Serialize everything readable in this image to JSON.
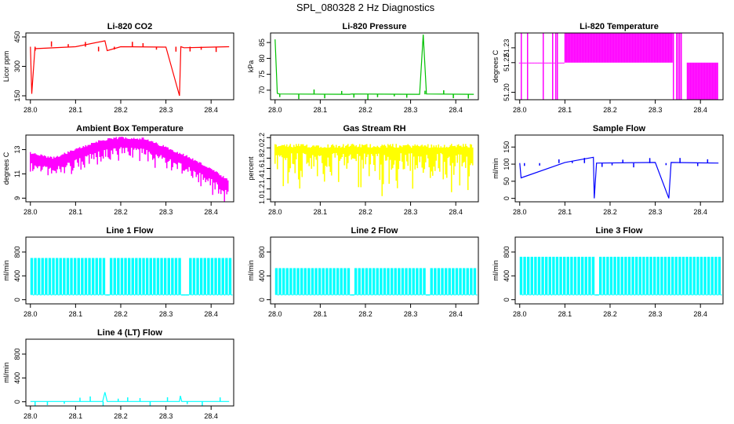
{
  "figure_title": "SPL_080328  2 Hz Diagnostics",
  "colors": {
    "red": "#ff0000",
    "green": "#00c000",
    "magenta": "#ff00ff",
    "yellow": "#ffff00",
    "blue": "#0000ff",
    "cyan": "#00ffff",
    "axis": "#000000"
  },
  "chart_data": [
    {
      "type": "line",
      "title": "Li-820 CO2",
      "xlabel": "",
      "ylabel": "Licor ppm",
      "xlim": [
        27.99,
        28.45
      ],
      "ylim": [
        130,
        470
      ],
      "xticks": [
        28.0,
        28.1,
        28.2,
        28.3,
        28.4
      ],
      "xtick_labels": [
        "28.0",
        "28.1",
        "28.2",
        "28.3",
        "28.4"
      ],
      "yticks": [
        150,
        300,
        450
      ],
      "ytick_labels": [
        "150",
        "300",
        "450"
      ],
      "color": "red",
      "style": "spiky",
      "series": [
        {
          "name": "CO2",
          "x": [
            28.0,
            28.003,
            28.01,
            28.1,
            28.165,
            28.17,
            28.2,
            28.3,
            28.33,
            28.333,
            28.34,
            28.44
          ],
          "y": [
            400,
            160,
            390,
            400,
            430,
            380,
            400,
            398,
            150,
            400,
            395,
            400
          ]
        }
      ]
    },
    {
      "type": "line",
      "title": "Li-820 Pressure",
      "xlabel": "",
      "ylabel": "kPa",
      "xlim": [
        27.99,
        28.45
      ],
      "ylim": [
        67,
        88
      ],
      "xticks": [
        28.0,
        28.1,
        28.2,
        28.3,
        28.4
      ],
      "xtick_labels": [
        "28.0",
        "28.1",
        "28.2",
        "28.3",
        "28.4"
      ],
      "yticks": [
        70,
        75,
        80,
        85
      ],
      "ytick_labels": [
        "70",
        "75",
        "80",
        "85"
      ],
      "color": "green",
      "style": "spiky",
      "series": [
        {
          "name": "Pressure",
          "x": [
            28.0,
            28.005,
            28.01,
            28.165,
            28.17,
            28.32,
            28.328,
            28.335,
            28.44
          ],
          "y": [
            86,
            69,
            68.8,
            68.7,
            68.8,
            68.7,
            87.5,
            68.8,
            68.7
          ]
        }
      ]
    },
    {
      "type": "line",
      "title": "Li-820 Temperature",
      "xlabel": "",
      "ylabel": "degrees C",
      "xlim": [
        27.99,
        28.45
      ],
      "ylim": [
        51.195,
        51.24
      ],
      "xticks": [
        28.0,
        28.1,
        28.2,
        28.3,
        28.4
      ],
      "xtick_labels": [
        "28.0",
        "28.1",
        "28.2",
        "28.3",
        "28.4"
      ],
      "yticks": [
        51.2,
        51.22,
        51.23
      ],
      "ytick_labels": [
        "51.20",
        "51.22",
        "51.23"
      ],
      "color": "magenta",
      "style": "dense",
      "series": [
        {
          "name": "Temperature",
          "x": [
            28.0,
            28.1,
            28.34,
            28.37,
            28.44
          ],
          "y": [
            51.23,
            51.23,
            51.22,
            51.22,
            51.22
          ]
        }
      ]
    },
    {
      "type": "line",
      "title": "Ambient Box Temperature",
      "xlabel": "",
      "ylabel": "degrees C",
      "xlim": [
        27.99,
        28.45
      ],
      "ylim": [
        8.7,
        14.2
      ],
      "xticks": [
        28.0,
        28.1,
        28.2,
        28.3,
        28.4
      ],
      "xtick_labels": [
        "28.0",
        "28.1",
        "28.2",
        "28.3",
        "28.4"
      ],
      "yticks": [
        9,
        11,
        13
      ],
      "ytick_labels": [
        "9",
        "11",
        "13"
      ],
      "color": "magenta",
      "style": "band",
      "series": [
        {
          "name": "Ambient",
          "x": [
            28.0,
            28.05,
            28.1,
            28.15,
            28.2,
            28.25,
            28.3,
            28.35,
            28.4,
            28.44
          ],
          "y": [
            12.3,
            11.9,
            12.6,
            13.3,
            13.6,
            13.5,
            12.8,
            12.0,
            11.0,
            10.0
          ]
        }
      ]
    },
    {
      "type": "line",
      "title": "Gas Stream RH",
      "xlabel": "",
      "ylabel": "percent",
      "xlim": [
        27.99,
        28.45
      ],
      "ylim": [
        0.95,
        2.25
      ],
      "xticks": [
        28.0,
        28.1,
        28.2,
        28.3,
        28.4
      ],
      "xtick_labels": [
        "28.0",
        "28.1",
        "28.2",
        "28.3",
        "28.4"
      ],
      "yticks": [
        1.0,
        1.2,
        1.4,
        1.6,
        1.8,
        2.0,
        2.2
      ],
      "ytick_labels": [
        "1.0",
        "1.2",
        "1.4",
        "1.6",
        "1.8",
        "2.0",
        "2.2"
      ],
      "color": "yellow",
      "style": "dense",
      "series": [
        {
          "name": "RH",
          "x": [
            28.0,
            28.44
          ],
          "y": [
            2.0,
            2.0
          ]
        }
      ]
    },
    {
      "type": "line",
      "title": "Sample Flow",
      "xlabel": "",
      "ylabel": "ml/min",
      "xlim": [
        27.99,
        28.45
      ],
      "ylim": [
        -10,
        185
      ],
      "xticks": [
        28.0,
        28.1,
        28.2,
        28.3,
        28.4
      ],
      "xtick_labels": [
        "28.0",
        "28.1",
        "28.2",
        "28.3",
        "28.4"
      ],
      "yticks": [
        0,
        50,
        100,
        150
      ],
      "ytick_labels": [
        "0",
        "50",
        "100",
        "150"
      ],
      "color": "blue",
      "style": "spiky",
      "series": [
        {
          "name": "Flow",
          "x": [
            28.0,
            28.003,
            28.1,
            28.163,
            28.165,
            28.17,
            28.3,
            28.33,
            28.335,
            28.44
          ],
          "y": [
            103,
            60,
            105,
            120,
            0,
            103,
            105,
            0,
            105,
            103
          ]
        }
      ]
    },
    {
      "type": "line",
      "title": "Line 1 Flow",
      "xlabel": "",
      "ylabel": "ml/min",
      "xlim": [
        27.99,
        28.45
      ],
      "ylim": [
        -70,
        1050
      ],
      "xticks": [
        28.0,
        28.1,
        28.2,
        28.3,
        28.4
      ],
      "xtick_labels": [
        "28.0",
        "28.1",
        "28.2",
        "28.3",
        "28.4"
      ],
      "yticks": [
        0,
        400,
        800
      ],
      "ytick_labels": [
        "0",
        "400",
        "800"
      ],
      "color": "cyan",
      "style": "square",
      "series": [
        {
          "name": "Line 1",
          "x": [
            28.0,
            28.44
          ],
          "y": [
            700,
            80
          ]
        }
      ]
    },
    {
      "type": "line",
      "title": "Line 2 Flow",
      "xlabel": "",
      "ylabel": "ml/min",
      "xlim": [
        27.99,
        28.45
      ],
      "ylim": [
        -70,
        1050
      ],
      "xticks": [
        28.0,
        28.1,
        28.2,
        28.3,
        28.4
      ],
      "xtick_labels": [
        "28.0",
        "28.1",
        "28.2",
        "28.3",
        "28.4"
      ],
      "yticks": [
        0,
        400,
        800
      ],
      "ytick_labels": [
        "0",
        "400",
        "800"
      ],
      "color": "cyan",
      "style": "square",
      "series": [
        {
          "name": "Line 2",
          "x": [
            28.0,
            28.44
          ],
          "y": [
            530,
            80
          ]
        }
      ]
    },
    {
      "type": "line",
      "title": "Line 3 Flow",
      "xlabel": "",
      "ylabel": "ml/min",
      "xlim": [
        27.99,
        28.45
      ],
      "ylim": [
        -70,
        1050
      ],
      "xticks": [
        28.0,
        28.1,
        28.2,
        28.3,
        28.4
      ],
      "xtick_labels": [
        "28.0",
        "28.1",
        "28.2",
        "28.3",
        "28.4"
      ],
      "yticks": [
        0,
        400,
        800
      ],
      "ytick_labels": [
        "0",
        "400",
        "800"
      ],
      "color": "cyan",
      "style": "square",
      "series": [
        {
          "name": "Line 3",
          "x": [
            28.0,
            28.44
          ],
          "y": [
            720,
            80
          ]
        }
      ]
    },
    {
      "type": "line",
      "title": "Line 4 (LT) Flow",
      "xlabel": "",
      "ylabel": "ml/min",
      "xlim": [
        27.99,
        28.45
      ],
      "ylim": [
        -70,
        1050
      ],
      "xticks": [
        28.0,
        28.1,
        28.2,
        28.3,
        28.4
      ],
      "xtick_labels": [
        "28.0",
        "28.1",
        "28.2",
        "28.3",
        "28.4"
      ],
      "yticks": [
        0,
        400,
        800
      ],
      "ytick_labels": [
        "0",
        "400",
        "800"
      ],
      "color": "cyan",
      "style": "spiky",
      "series": [
        {
          "name": "Line 4",
          "x": [
            28.0,
            28.16,
            28.165,
            28.17,
            28.33,
            28.332,
            28.335,
            28.44
          ],
          "y": [
            5,
            5,
            160,
            5,
            5,
            100,
            5,
            5
          ]
        }
      ]
    }
  ]
}
